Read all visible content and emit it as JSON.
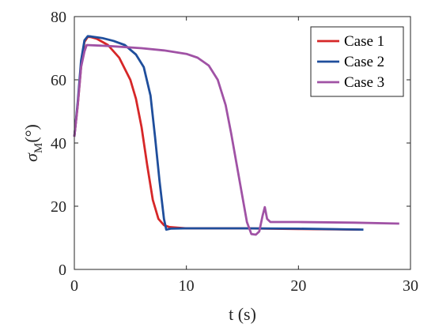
{
  "chart_data": {
    "type": "line",
    "xlabel": "t (s)",
    "ylabel_base": "σ",
    "ylabel_sub": "M",
    "ylabel_suffix": "(°)",
    "xlim": [
      0,
      30
    ],
    "ylim": [
      0,
      80
    ],
    "xticks": [
      0,
      10,
      20,
      30
    ],
    "yticks": [
      0,
      20,
      40,
      60,
      80
    ],
    "grid": false,
    "legend_position": "top-right",
    "series": [
      {
        "name": "Case 1",
        "color": "#d62728",
        "points": [
          [
            0,
            42
          ],
          [
            0.3,
            52
          ],
          [
            0.6,
            64
          ],
          [
            0.9,
            72
          ],
          [
            1.2,
            73.6
          ],
          [
            1.5,
            73.5
          ],
          [
            2,
            73
          ],
          [
            3,
            71
          ],
          [
            4,
            67
          ],
          [
            5,
            60
          ],
          [
            5.5,
            54
          ],
          [
            6,
            45
          ],
          [
            6.5,
            33
          ],
          [
            7,
            22
          ],
          [
            7.5,
            16
          ],
          [
            8,
            14
          ],
          [
            8.5,
            13.4
          ],
          [
            10,
            13
          ],
          [
            15,
            13
          ],
          [
            20,
            12.8
          ],
          [
            25.5,
            12.6
          ]
        ]
      },
      {
        "name": "Case 2",
        "color": "#1f4e9c",
        "points": [
          [
            0,
            42
          ],
          [
            0.3,
            53
          ],
          [
            0.6,
            66
          ],
          [
            0.9,
            72.5
          ],
          [
            1.2,
            73.8
          ],
          [
            1.5,
            73.7
          ],
          [
            2.5,
            73.2
          ],
          [
            3.5,
            72.3
          ],
          [
            4.5,
            71
          ],
          [
            5.5,
            68
          ],
          [
            6.2,
            64
          ],
          [
            6.8,
            55
          ],
          [
            7.2,
            42
          ],
          [
            7.6,
            28
          ],
          [
            8,
            16
          ],
          [
            8.2,
            12.6
          ],
          [
            8.6,
            12.9
          ],
          [
            10,
            13
          ],
          [
            15,
            13
          ],
          [
            20,
            12.9
          ],
          [
            25.8,
            12.6
          ]
        ]
      },
      {
        "name": "Case 3",
        "color": "#a052a5",
        "points": [
          [
            0,
            42
          ],
          [
            0.3,
            52
          ],
          [
            0.6,
            64
          ],
          [
            0.9,
            69
          ],
          [
            1.1,
            71
          ],
          [
            3,
            70.7
          ],
          [
            6,
            70
          ],
          [
            8,
            69.3
          ],
          [
            10,
            68.2
          ],
          [
            11,
            67
          ],
          [
            12,
            64.5
          ],
          [
            12.8,
            60
          ],
          [
            13.5,
            52
          ],
          [
            14,
            43
          ],
          [
            14.5,
            33
          ],
          [
            15,
            23
          ],
          [
            15.4,
            15
          ],
          [
            15.8,
            11.2
          ],
          [
            16.2,
            11
          ],
          [
            16.5,
            12
          ],
          [
            16.8,
            17
          ],
          [
            17,
            19.7
          ],
          [
            17.2,
            16
          ],
          [
            17.5,
            15
          ],
          [
            18,
            15
          ],
          [
            20,
            15
          ],
          [
            25,
            14.8
          ],
          [
            29,
            14.5
          ]
        ]
      }
    ]
  }
}
